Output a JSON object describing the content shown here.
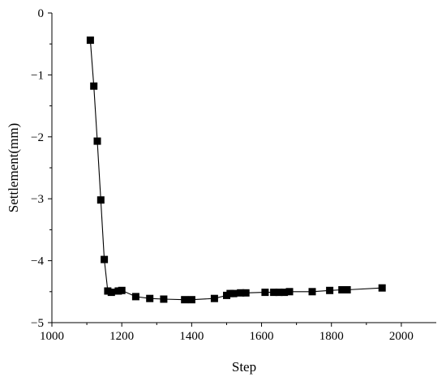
{
  "chart_data": {
    "type": "line",
    "xlabel": "Step",
    "ylabel": "Settlement(mm)",
    "xlim": [
      1000,
      2100
    ],
    "ylim": [
      -5,
      0
    ],
    "xticks": [
      1000,
      1200,
      1400,
      1600,
      1800,
      2000
    ],
    "yticks": [
      0,
      -1,
      -2,
      -3,
      -4,
      -5
    ],
    "xtick_labels": [
      "1000",
      "1200",
      "1400",
      "1600",
      "1800",
      "2000"
    ],
    "ytick_labels": [
      "0",
      "−1",
      "−2",
      "−3",
      "−4",
      "−5"
    ],
    "grid": false,
    "series": [
      {
        "color": "#000000",
        "marker": "square",
        "points": [
          {
            "x": 1110,
            "y": -0.44
          },
          {
            "x": 1120,
            "y": -1.18
          },
          {
            "x": 1130,
            "y": -2.07
          },
          {
            "x": 1140,
            "y": -3.02
          },
          {
            "x": 1150,
            "y": -3.98
          },
          {
            "x": 1160,
            "y": -4.49
          },
          {
            "x": 1170,
            "y": -4.51
          },
          {
            "x": 1190,
            "y": -4.49
          },
          {
            "x": 1200,
            "y": -4.48
          },
          {
            "x": 1240,
            "y": -4.58
          },
          {
            "x": 1280,
            "y": -4.61
          },
          {
            "x": 1320,
            "y": -4.62
          },
          {
            "x": 1380,
            "y": -4.63
          },
          {
            "x": 1400,
            "y": -4.63
          },
          {
            "x": 1465,
            "y": -4.61
          },
          {
            "x": 1500,
            "y": -4.56
          },
          {
            "x": 1510,
            "y": -4.53
          },
          {
            "x": 1520,
            "y": -4.53
          },
          {
            "x": 1540,
            "y": -4.52
          },
          {
            "x": 1555,
            "y": -4.52
          },
          {
            "x": 1610,
            "y": -4.51
          },
          {
            "x": 1635,
            "y": -4.51
          },
          {
            "x": 1650,
            "y": -4.51
          },
          {
            "x": 1665,
            "y": -4.51
          },
          {
            "x": 1680,
            "y": -4.5
          },
          {
            "x": 1745,
            "y": -4.5
          },
          {
            "x": 1795,
            "y": -4.48
          },
          {
            "x": 1830,
            "y": -4.47
          },
          {
            "x": 1845,
            "y": -4.47
          },
          {
            "x": 1945,
            "y": -4.44
          }
        ]
      }
    ]
  }
}
